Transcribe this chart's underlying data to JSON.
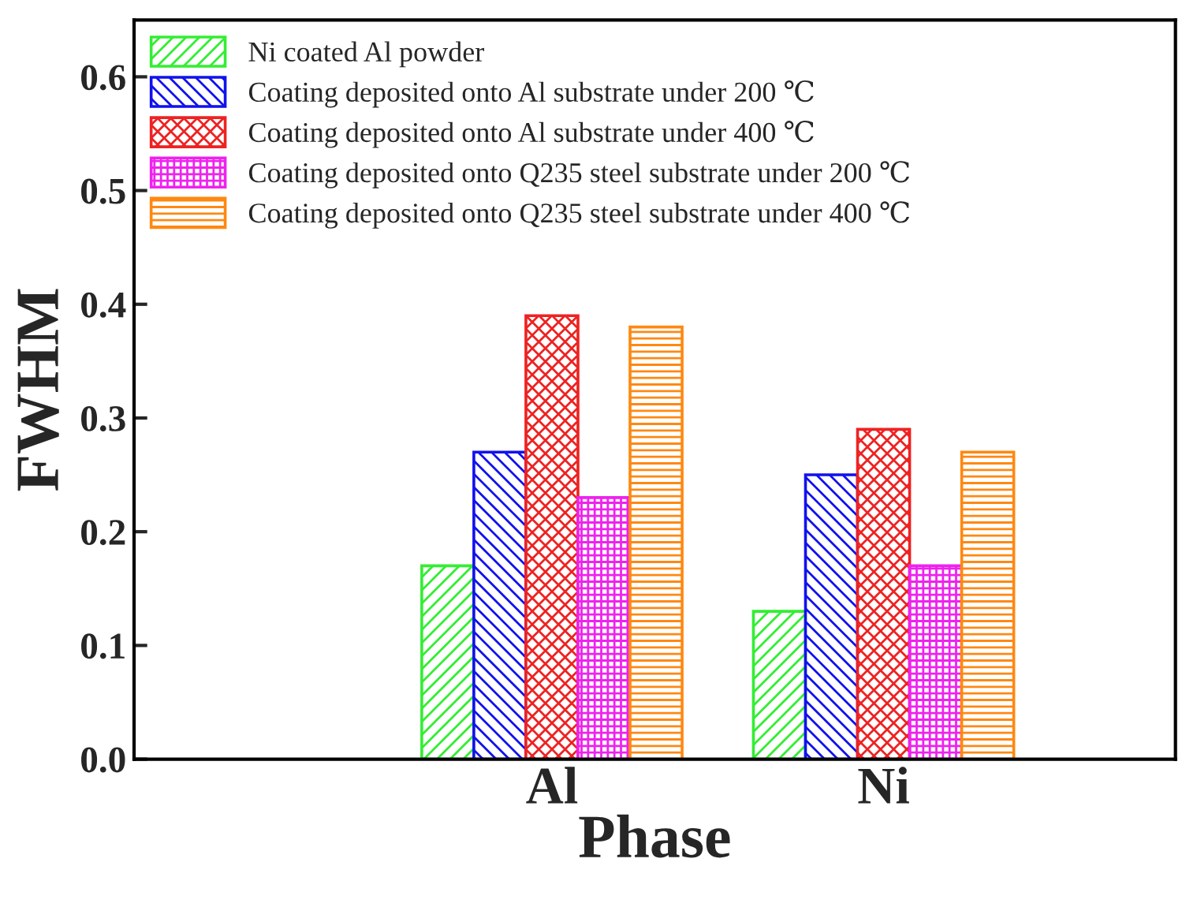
{
  "chart_data": {
    "type": "bar",
    "xlabel": "Phase",
    "ylabel": "FWHM",
    "categories": [
      "Al",
      "Ni"
    ],
    "series": [
      {
        "name": "Ni coated Al powder",
        "color": "#33ee33",
        "values": [
          0.17,
          0.13
        ]
      },
      {
        "name": "Coating deposited onto Al substrate under 200 ℃",
        "color": "#1111ee",
        "values": [
          0.27,
          0.25
        ]
      },
      {
        "name": "Coating deposited onto Al substrate under 400 ℃",
        "color": "#ee2222",
        "values": [
          0.39,
          0.29
        ]
      },
      {
        "name": "Coating deposited onto Q235 steel substrate under 200 ℃",
        "color": "#ee22ee",
        "values": [
          0.23,
          0.17
        ]
      },
      {
        "name": "Coating deposited onto Q235 steel substrate under 400 ℃",
        "color": "#ff8811",
        "values": [
          0.38,
          0.27
        ]
      }
    ],
    "ylim": [
      0,
      0.65
    ],
    "yticks": [
      {
        "value": 0,
        "label": "0.0"
      },
      0.1,
      0.2,
      0.3,
      0.4,
      0.5,
      0.6
    ],
    "legend": "top left",
    "grid": false
  }
}
